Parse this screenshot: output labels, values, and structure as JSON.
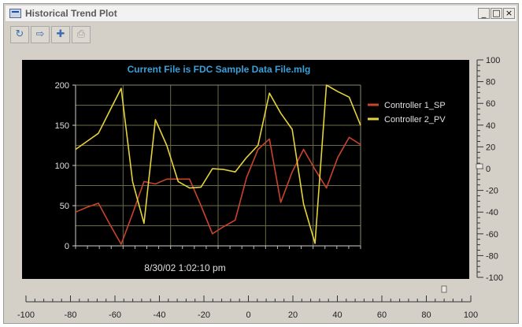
{
  "window": {
    "title": "Historical Trend Plot",
    "minimize_glyph": "_",
    "maximize_glyph": "□",
    "close_glyph": "×"
  },
  "toolbar": {
    "buttons": [
      {
        "name": "refresh",
        "glyph": "↻"
      },
      {
        "name": "export",
        "glyph": "⇨"
      },
      {
        "name": "zoom",
        "glyph": "✚"
      },
      {
        "name": "print",
        "glyph": "⎙"
      }
    ]
  },
  "chart_data": {
    "type": "line",
    "title": "Current File is FDC Sample Data File.mlg",
    "xlabel": "8/30/02 1:02:10 pm",
    "ylabel": "",
    "ylim": [
      0,
      200
    ],
    "yticks": [
      0,
      50,
      100,
      150,
      200
    ],
    "grid": true,
    "legend_position": "right",
    "background": "#000000",
    "grid_color": "#6b6b4a",
    "x": [
      0,
      1,
      2,
      3,
      4,
      5,
      6,
      7,
      8,
      9,
      10,
      11,
      12,
      13,
      14,
      15,
      16,
      17,
      18,
      19,
      20,
      21,
      22,
      23,
      24,
      25
    ],
    "series": [
      {
        "name": "Controller 1_SP",
        "color": "#c8442c",
        "values": [
          42,
          48,
          53,
          27,
          2,
          40,
          80,
          77,
          83,
          83,
          83,
          50,
          15,
          24,
          32,
          85,
          120,
          133,
          54,
          92,
          120,
          95,
          72,
          110,
          135,
          126
        ]
      },
      {
        "name": "Controller 2_PV",
        "color": "#e6d23c",
        "values": [
          120,
          130,
          140,
          168,
          196,
          80,
          28,
          157,
          125,
          80,
          72,
          73,
          96,
          95,
          92,
          110,
          125,
          190,
          165,
          145,
          52,
          3,
          200,
          192,
          185,
          150
        ]
      }
    ]
  },
  "right_scale": {
    "ticks": [
      "100",
      "80",
      "60",
      "40",
      "20",
      "0",
      "-20",
      "-40",
      "-60",
      "-80",
      "-100"
    ]
  },
  "bottom_scale": {
    "ticks": [
      "-100",
      "-80",
      "-60",
      "-40",
      "-20",
      "0",
      "20",
      "40",
      "60",
      "80",
      "100"
    ]
  }
}
